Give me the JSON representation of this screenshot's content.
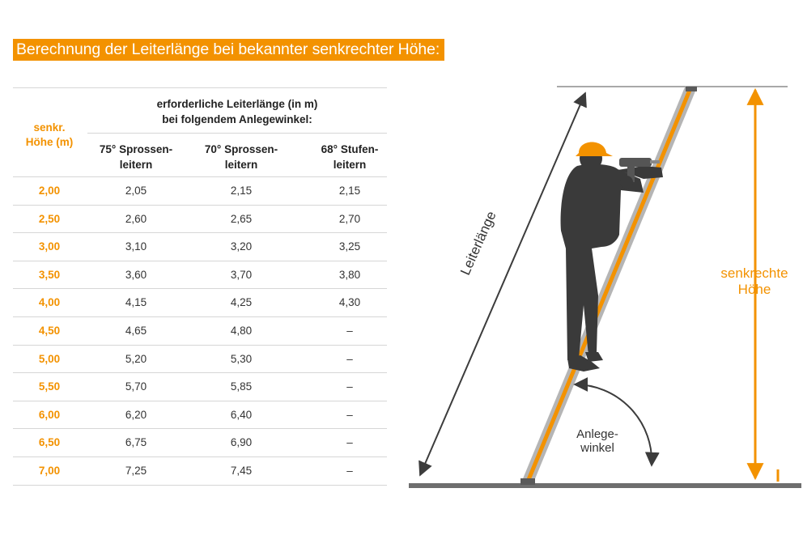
{
  "title": "Berechnung der Leiterlänge bei bekannter senkrechter Höhe:",
  "colors": {
    "accent": "#f39200",
    "figure": "#3a3a3a",
    "ground": "#6e6e6e"
  },
  "table": {
    "first_col_header": [
      "senkr.",
      "Höhe (m)"
    ],
    "group_header": [
      "erforderliche Leiterlänge (in m)",
      "bei folgendem Anlegewinkel:"
    ],
    "col_headers": [
      [
        "75° Sprossen-",
        "leitern"
      ],
      [
        "70° Sprossen-",
        "leitern"
      ],
      [
        "68° Stufen-",
        "leitern"
      ]
    ],
    "rows": [
      [
        "2,00",
        "2,05",
        "2,15",
        "2,15"
      ],
      [
        "2,50",
        "2,60",
        "2,65",
        "2,70"
      ],
      [
        "3,00",
        "3,10",
        "3,20",
        "3,25"
      ],
      [
        "3,50",
        "3,60",
        "3,70",
        "3,80"
      ],
      [
        "4,00",
        "4,15",
        "4,25",
        "4,30"
      ],
      [
        "4,50",
        "4,65",
        "4,80",
        "–"
      ],
      [
        "5,00",
        "5,20",
        "5,30",
        "–"
      ],
      [
        "5,50",
        "5,70",
        "5,85",
        "–"
      ],
      [
        "6,00",
        "6,20",
        "6,40",
        "–"
      ],
      [
        "6,50",
        "6,75",
        "6,90",
        "–"
      ],
      [
        "7,00",
        "7,25",
        "7,45",
        "–"
      ]
    ]
  },
  "diagram": {
    "ladder_length_label": "Leiterlänge",
    "height_label": [
      "senkrechte",
      "Höhe"
    ],
    "angle_label": [
      "Anlege-",
      "winkel"
    ],
    "icons": [
      "worker-figure",
      "ladder",
      "drill-icon",
      "hard-hat-icon"
    ]
  }
}
